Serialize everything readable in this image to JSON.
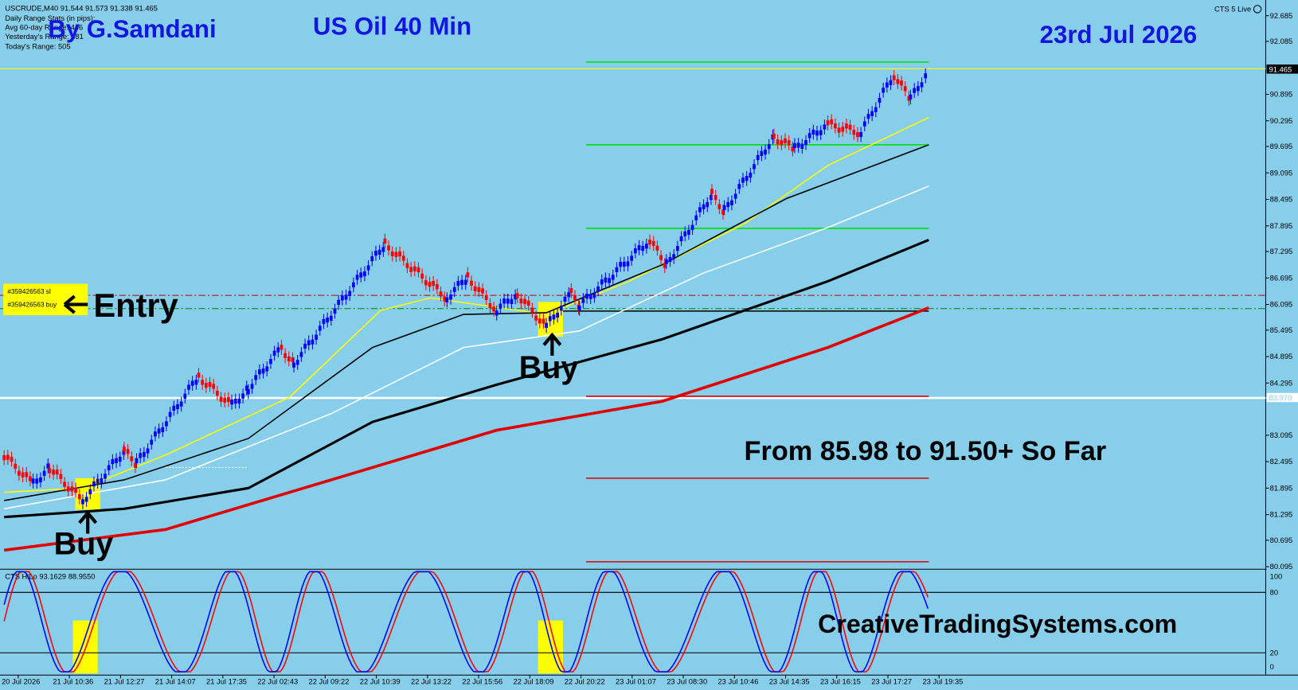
{
  "header": {
    "symbol_line": "USCRUDE,M40  91.544 91.573 91.338 91.465",
    "stats": [
      "Daily Range Stats (in pips):",
      "Avg 60-day Range: 446",
      "Yesterday's Range: 381",
      "Today's Range: 505"
    ]
  },
  "author": "By G.Samdani",
  "title": "US Oil 40 Min",
  "date": "23rd Jul 2026",
  "platform_label": "CTS 5 Live",
  "price_axis": [
    "92.685",
    "92.085",
    "90.895",
    "90.295",
    "89.695",
    "89.095",
    "88.495",
    "87.895",
    "87.295",
    "86.695",
    "86.095",
    "85.495",
    "84.895",
    "84.295",
    "83.095",
    "82.495",
    "81.895",
    "81.295",
    "80.695",
    "80.095"
  ],
  "current_price_label": "91.465",
  "hline_label": "83.970",
  "time_axis": [
    "20 Jul 2026",
    "21 Jul 10:36",
    "21 Jul 12:27",
    "21 Jul 14:07",
    "21 Jul 17:35",
    "22 Jul 02:43",
    "22 Jul 09:22",
    "22 Jul 10:39",
    "22 Jul 13:22",
    "22 Jul 15:56",
    "22 Jul 18:09",
    "22 Jul 20:22",
    "23 Jul 01:07",
    "23 Jul 08:30",
    "23 Jul 10:46",
    "23 Jul 14:35",
    "23 Jul 16:15",
    "23 Jul 17:27",
    "23 Jul 19:35"
  ],
  "order_labels": [
    "#359426563 sl",
    "#359426563 buy"
  ],
  "annotations": {
    "entry": "Entry",
    "buy_1": "Buy",
    "buy_2": "Buy",
    "result": "From  85.98  to 91.50+ So Far"
  },
  "indicator": {
    "label": "CTS HiLo 93.1629 88.9550",
    "levels": [
      "100",
      "80",
      "20",
      "0"
    ]
  },
  "watermark": "CreativeTradingSystems.com"
}
